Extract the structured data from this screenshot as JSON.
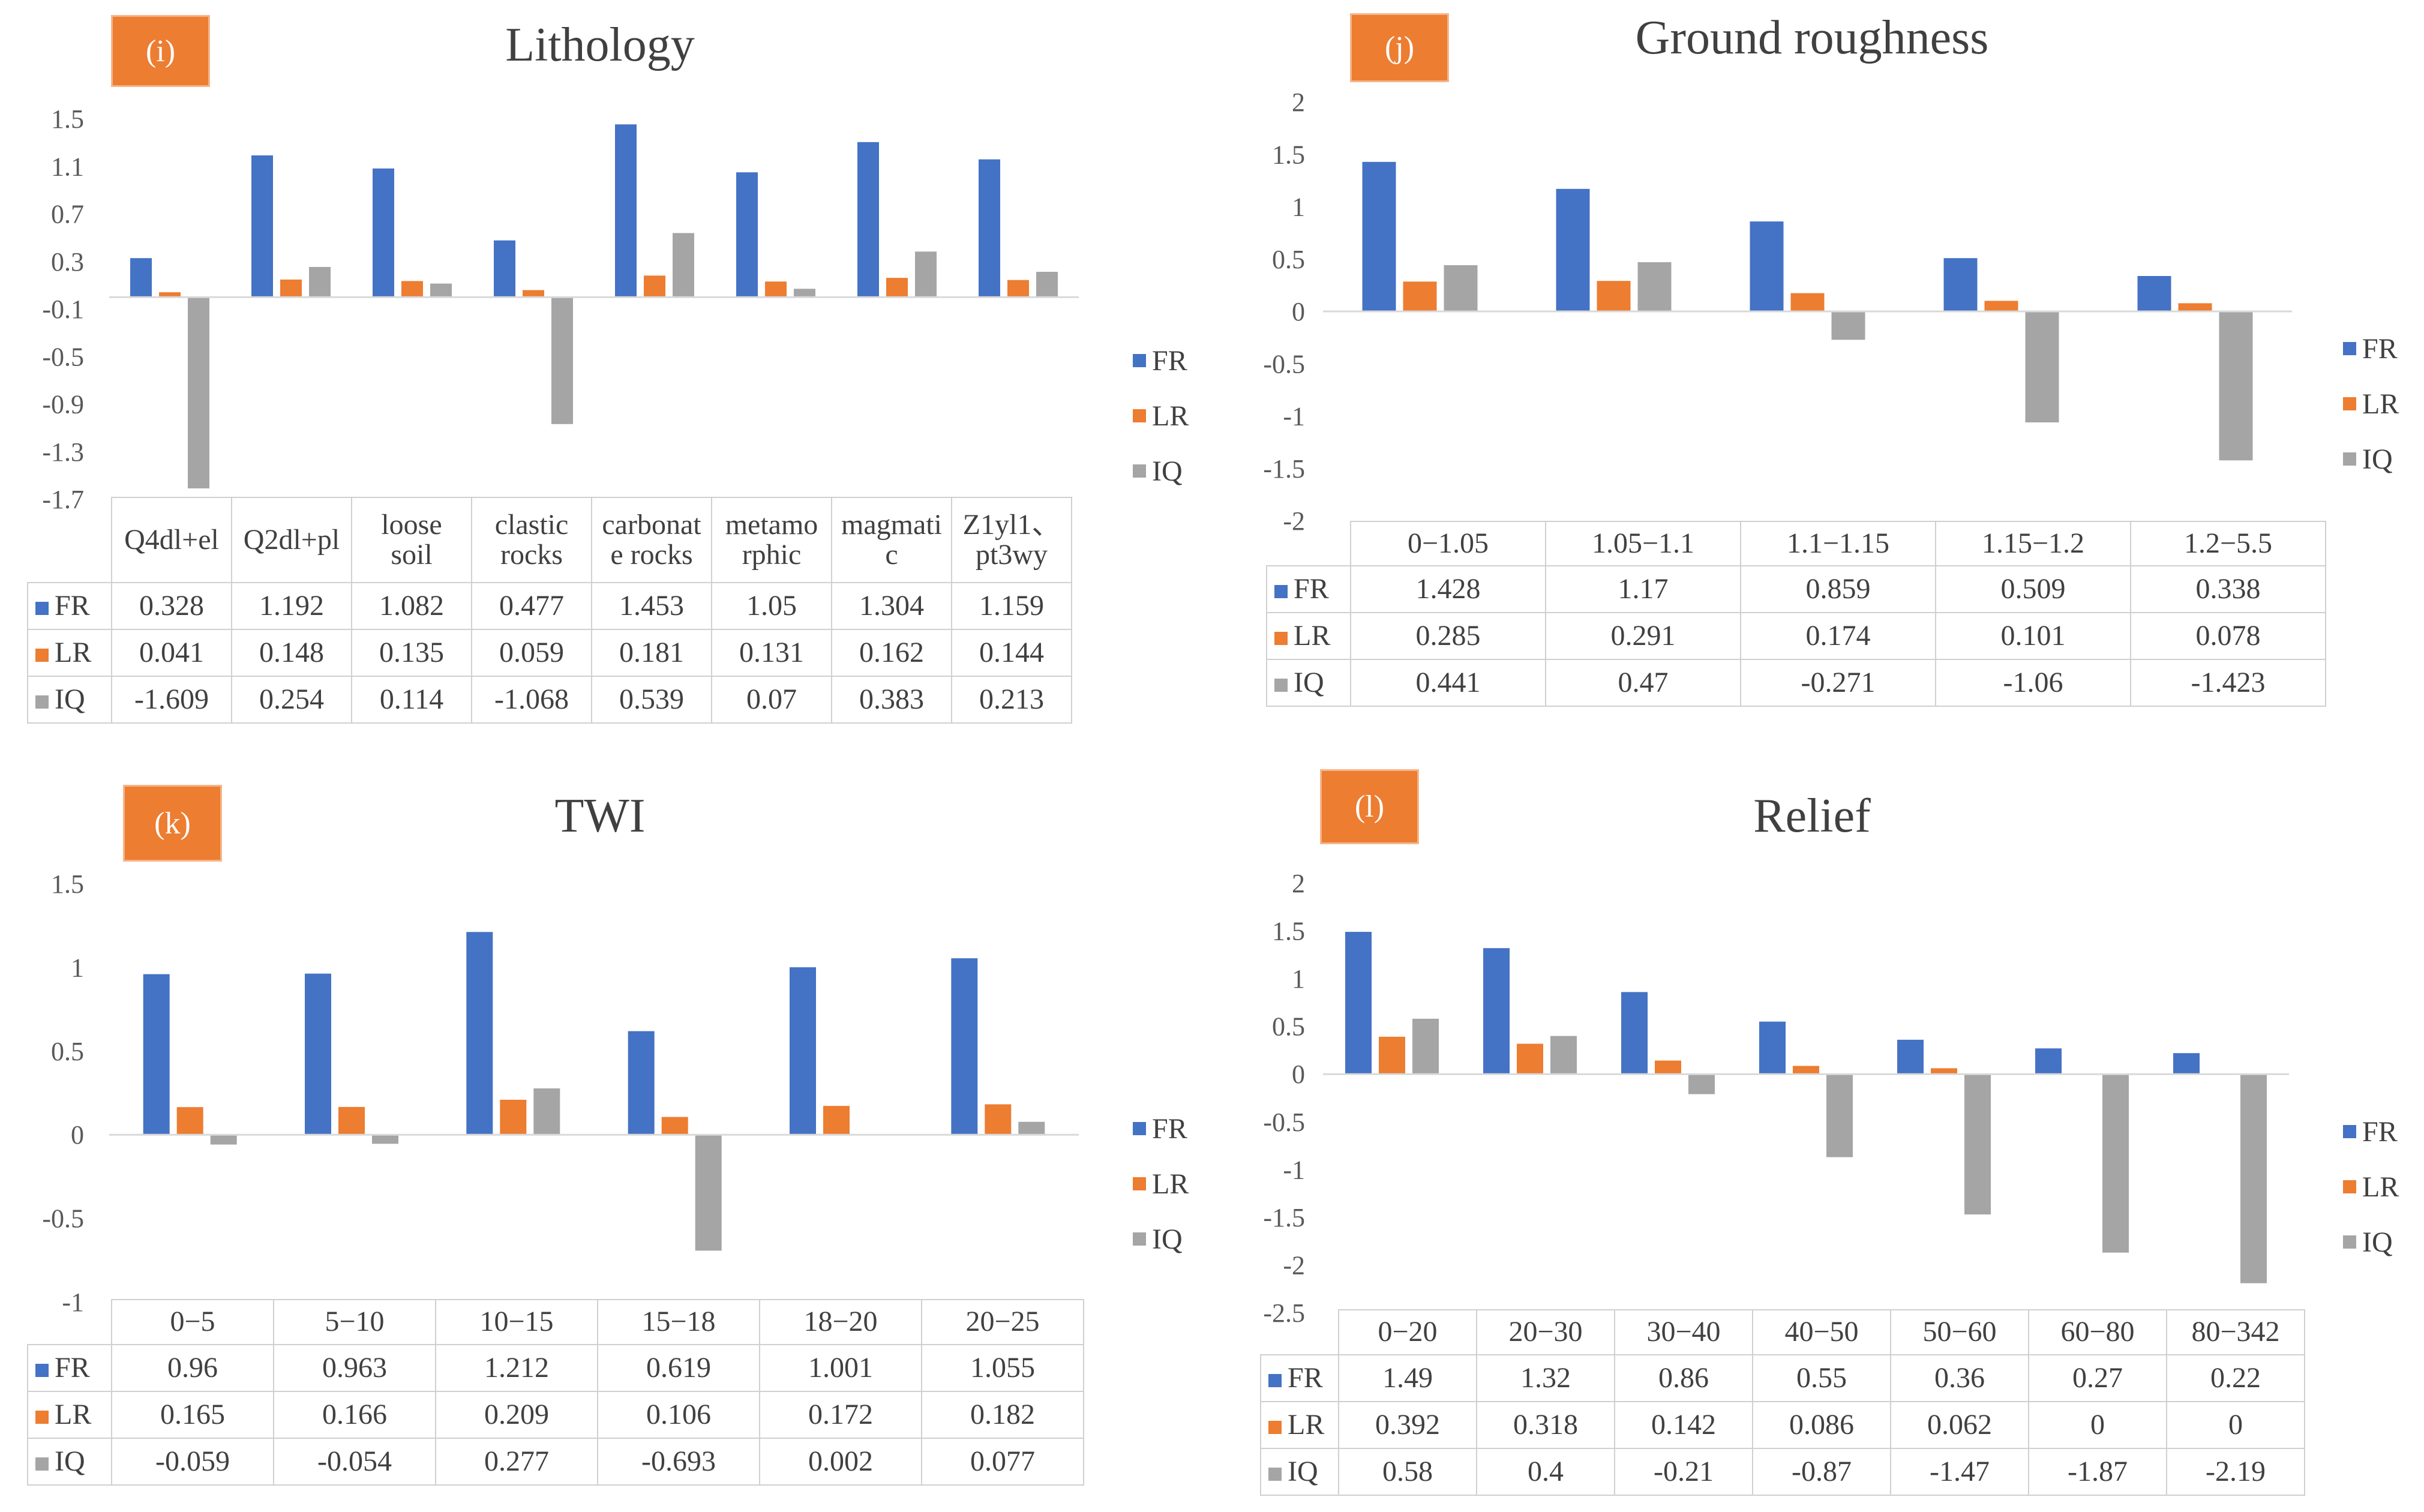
{
  "colors": {
    "FR": "#4472C4",
    "LR": "#ED7D31",
    "IQ": "#A5A5A5",
    "badge": "#ED7D31"
  },
  "chart_data": [
    {
      "type": "bar",
      "label": "(i)",
      "title": "Lithology",
      "categories": [
        "Q4dl+el",
        "Q2dl+pl",
        "loose soil",
        "clastic rocks",
        "carbonate rocks",
        "metamorphic",
        "magmatic",
        "Z1yl1、pt3wy"
      ],
      "category_labels": [
        [
          "Q4dl+el"
        ],
        [
          "Q2dl+pl"
        ],
        [
          "loose",
          "soil"
        ],
        [
          "clastic",
          "rocks"
        ],
        [
          "carbonat",
          "e rocks"
        ],
        [
          "metamo",
          "rphic"
        ],
        [
          "magmati",
          "c"
        ],
        [
          "Z1yl1、",
          "pt3wy"
        ]
      ],
      "yticks": [
        1.5,
        1.1,
        0.7,
        0.3,
        -0.1,
        -0.5,
        -0.9,
        -1.3,
        -1.7
      ],
      "ytick_labels": [
        "1.5",
        "1.1",
        "0.7",
        "0.3",
        "-0.1",
        "-0.5",
        "-0.9",
        "-1.3",
        "-1.7"
      ],
      "ylim": [
        -1.7,
        1.5
      ],
      "series": [
        {
          "name": "FR",
          "values": [
            0.328,
            1.192,
            1.082,
            0.477,
            1.453,
            1.05,
            1.304,
            1.159
          ],
          "labels": [
            "0.328",
            "1.192",
            "1.082",
            "0.477",
            "1.453",
            "1.05",
            "1.304",
            "1.159"
          ]
        },
        {
          "name": "LR",
          "values": [
            0.041,
            0.148,
            0.135,
            0.059,
            0.181,
            0.131,
            0.162,
            0.144
          ],
          "labels": [
            "0.041",
            "0.148",
            "0.135",
            "0.059",
            "0.181",
            "0.131",
            "0.162",
            "0.144"
          ]
        },
        {
          "name": "IQ",
          "values": [
            -1.609,
            0.254,
            0.114,
            -1.068,
            0.539,
            0.07,
            0.383,
            0.213
          ],
          "labels": [
            "-1.609",
            "0.254",
            "0.114",
            "-1.068",
            "0.539",
            "0.07",
            "0.383",
            "0.213"
          ]
        }
      ]
    },
    {
      "type": "bar",
      "label": "(j)",
      "title": "Ground roughness",
      "categories": [
        "0−1.05",
        "1.05−1.1",
        "1.1−1.15",
        "1.15−1.2",
        "1.2−5.5"
      ],
      "category_labels": [
        [
          "0−1.05"
        ],
        [
          "1.05−1.1"
        ],
        [
          "1.1−1.15"
        ],
        [
          "1.15−1.2"
        ],
        [
          "1.2−5.5"
        ]
      ],
      "yticks": [
        2,
        1.5,
        1,
        0.5,
        0,
        -0.5,
        -1,
        -1.5,
        -2
      ],
      "ytick_labels": [
        "2",
        "1.5",
        "1",
        "0.5",
        "0",
        "-0.5",
        "-1",
        "-1.5",
        "-2"
      ],
      "ylim": [
        -2,
        2
      ],
      "series": [
        {
          "name": "FR",
          "values": [
            1.428,
            1.17,
            0.859,
            0.509,
            0.338
          ],
          "labels": [
            "1.428",
            "1.17",
            "0.859",
            "0.509",
            "0.338"
          ]
        },
        {
          "name": "LR",
          "values": [
            0.285,
            0.291,
            0.174,
            0.101,
            0.078
          ],
          "labels": [
            "0.285",
            "0.291",
            "0.174",
            "0.101",
            "0.078"
          ]
        },
        {
          "name": "IQ",
          "values": [
            0.441,
            0.47,
            -0.271,
            -1.06,
            -1.423
          ],
          "labels": [
            "0.441",
            "0.47",
            "-0.271",
            "-1.06",
            "-1.423"
          ]
        }
      ]
    },
    {
      "type": "bar",
      "label": "(k)",
      "title": "TWI",
      "categories": [
        "0−5",
        "5−10",
        "10−15",
        "15−18",
        "18−20",
        "20−25"
      ],
      "category_labels": [
        [
          "0−5"
        ],
        [
          "5−10"
        ],
        [
          "10−15"
        ],
        [
          "15−18"
        ],
        [
          "18−20"
        ],
        [
          "20−25"
        ]
      ],
      "yticks": [
        1.5,
        1,
        0.5,
        0,
        -0.5,
        -1
      ],
      "ytick_labels": [
        "1.5",
        "1",
        "0.5",
        "0",
        "-0.5",
        "-1"
      ],
      "ylim": [
        -1,
        1.5
      ],
      "series": [
        {
          "name": "FR",
          "values": [
            0.96,
            0.963,
            1.212,
            0.619,
            1.001,
            1.055
          ],
          "labels": [
            "0.96",
            "0.963",
            "1.212",
            "0.619",
            "1.001",
            "1.055"
          ]
        },
        {
          "name": "LR",
          "values": [
            0.165,
            0.166,
            0.209,
            0.106,
            0.172,
            0.182
          ],
          "labels": [
            "0.165",
            "0.166",
            "0.209",
            "0.106",
            "0.172",
            "0.182"
          ]
        },
        {
          "name": "IQ",
          "values": [
            -0.059,
            -0.054,
            0.277,
            -0.693,
            0.002,
            0.077
          ],
          "labels": [
            "-0.059",
            "-0.054",
            "0.277",
            "-0.693",
            "0.002",
            "0.077"
          ]
        }
      ]
    },
    {
      "type": "bar",
      "label": "(l)",
      "title": "Relief",
      "categories": [
        "0−20",
        "20−30",
        "30−40",
        "40−50",
        "50−60",
        "60−80",
        "80−342"
      ],
      "category_labels": [
        [
          "0−20"
        ],
        [
          "20−30"
        ],
        [
          "30−40"
        ],
        [
          "40−50"
        ],
        [
          "50−60"
        ],
        [
          "60−80"
        ],
        [
          "80−342"
        ]
      ],
      "yticks": [
        2,
        1.5,
        1,
        0.5,
        0,
        -0.5,
        -1,
        -1.5,
        -2,
        -2.5
      ],
      "ytick_labels": [
        "2",
        "1.5",
        "1",
        "0.5",
        "0",
        "-0.5",
        "-1",
        "-1.5",
        "-2",
        "-2.5"
      ],
      "ylim": [
        -2.5,
        2
      ],
      "series": [
        {
          "name": "FR",
          "values": [
            1.49,
            1.32,
            0.86,
            0.55,
            0.36,
            0.27,
            0.22
          ],
          "labels": [
            "1.49",
            "1.32",
            "0.86",
            "0.55",
            "0.36",
            "0.27",
            "0.22"
          ]
        },
        {
          "name": "LR",
          "values": [
            0.392,
            0.318,
            0.142,
            0.086,
            0.062,
            0,
            0
          ],
          "labels": [
            "0.392",
            "0.318",
            "0.142",
            "0.086",
            "0.062",
            "0",
            "0"
          ]
        },
        {
          "name": "IQ",
          "values": [
            0.58,
            0.4,
            -0.21,
            -0.87,
            -1.47,
            -1.87,
            -2.19
          ],
          "labels": [
            "0.58",
            "0.4",
            "-0.21",
            "-0.87",
            "-1.47",
            "-1.87",
            "-2.19"
          ]
        }
      ]
    }
  ]
}
